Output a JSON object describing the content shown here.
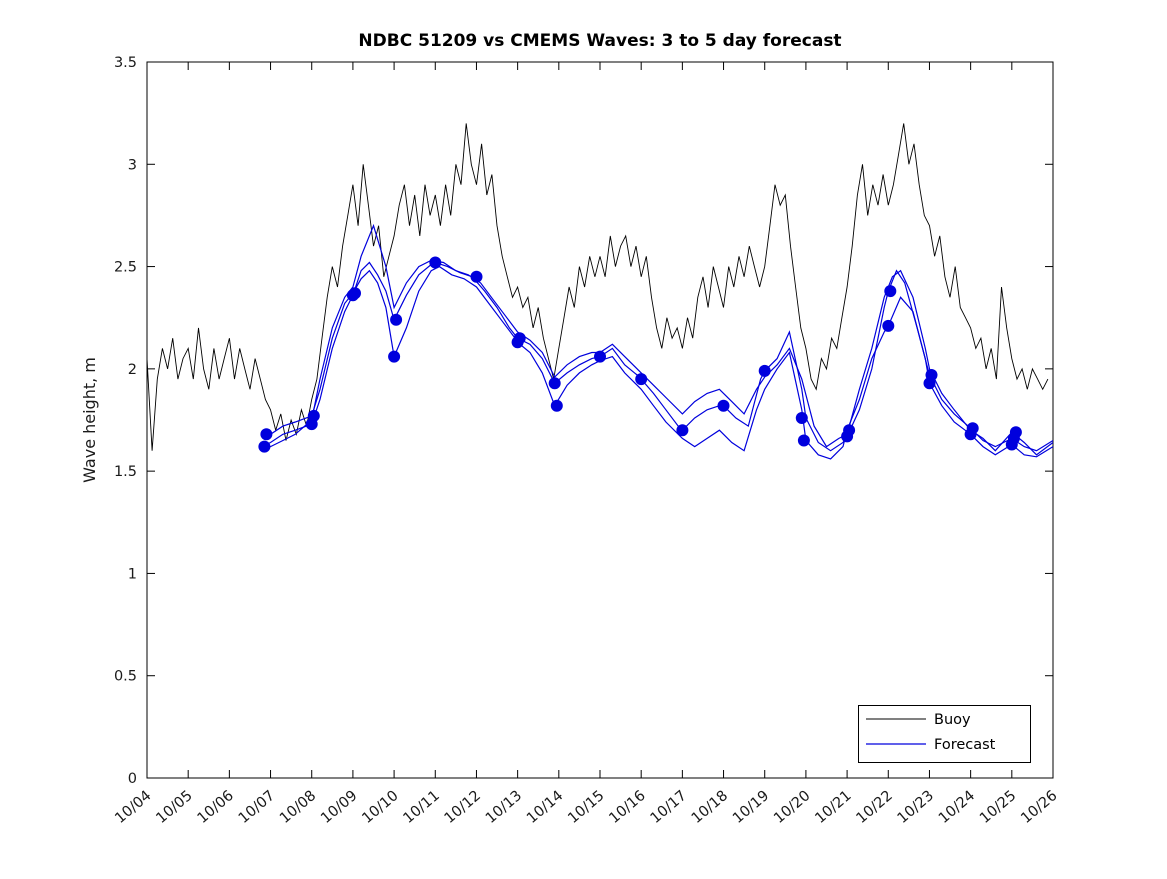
{
  "chart_data": {
    "type": "line",
    "title": "NDBC 51209 vs CMEMS Waves: 3 to 5 day forecast",
    "xlabel": "",
    "ylabel": "Wave height, m",
    "ylim": [
      0,
      3.5
    ],
    "y_ticks": [
      0,
      0.5,
      1,
      1.5,
      2,
      2.5,
      3,
      3.5
    ],
    "y_tick_labels": [
      "0",
      "0.5",
      "1",
      "1.5",
      "2",
      "2.5",
      "3",
      "3.5"
    ],
    "x_range_days": [
      0,
      22
    ],
    "x_tick_positions": [
      0,
      1,
      2,
      3,
      4,
      5,
      6,
      7,
      8,
      9,
      10,
      11,
      12,
      13,
      14,
      15,
      16,
      17,
      18,
      19,
      20,
      21,
      22
    ],
    "x_tick_labels": [
      "10/04",
      "10/05",
      "10/06",
      "10/07",
      "10/08",
      "10/09",
      "10/10",
      "10/11",
      "10/12",
      "10/13",
      "10/14",
      "10/15",
      "10/16",
      "10/17",
      "10/18",
      "10/19",
      "10/20",
      "10/21",
      "10/22",
      "10/23",
      "10/24",
      "10/25",
      "10/26"
    ],
    "grid": false,
    "legend": {
      "position": "bottom-right",
      "entries": [
        {
          "label": "Buoy",
          "color": "#000000"
        },
        {
          "label": "Forecast",
          "color": "#0000dd"
        }
      ]
    },
    "buoy": {
      "name": "Buoy",
      "color": "#000000",
      "t_start_days": 0,
      "t_step_days": 0.125,
      "values": [
        2.05,
        1.6,
        1.95,
        2.1,
        2.0,
        2.15,
        1.95,
        2.05,
        2.1,
        1.95,
        2.2,
        2.0,
        1.9,
        2.1,
        1.95,
        2.05,
        2.15,
        1.95,
        2.1,
        2.0,
        1.9,
        2.05,
        1.95,
        1.85,
        1.8,
        1.7,
        1.78,
        1.65,
        1.75,
        1.68,
        1.8,
        1.72,
        1.85,
        1.95,
        2.15,
        2.35,
        2.5,
        2.4,
        2.6,
        2.75,
        2.9,
        2.7,
        3.0,
        2.8,
        2.6,
        2.7,
        2.45,
        2.55,
        2.65,
        2.8,
        2.9,
        2.7,
        2.85,
        2.65,
        2.9,
        2.75,
        2.85,
        2.7,
        2.9,
        2.75,
        3.0,
        2.9,
        3.2,
        3.0,
        2.9,
        3.1,
        2.85,
        2.95,
        2.7,
        2.55,
        2.45,
        2.35,
        2.4,
        2.3,
        2.35,
        2.2,
        2.3,
        2.15,
        2.05,
        1.95,
        2.1,
        2.25,
        2.4,
        2.3,
        2.5,
        2.4,
        2.55,
        2.45,
        2.55,
        2.45,
        2.65,
        2.5,
        2.6,
        2.65,
        2.5,
        2.6,
        2.45,
        2.55,
        2.35,
        2.2,
        2.1,
        2.25,
        2.15,
        2.2,
        2.1,
        2.25,
        2.15,
        2.35,
        2.45,
        2.3,
        2.5,
        2.4,
        2.3,
        2.5,
        2.4,
        2.55,
        2.45,
        2.6,
        2.5,
        2.4,
        2.5,
        2.7,
        2.9,
        2.8,
        2.85,
        2.6,
        2.4,
        2.2,
        2.1,
        1.95,
        1.9,
        2.05,
        2.0,
        2.15,
        2.1,
        2.25,
        2.4,
        2.6,
        2.85,
        3.0,
        2.75,
        2.9,
        2.8,
        2.95,
        2.8,
        2.9,
        3.05,
        3.2,
        3.0,
        3.1,
        2.9,
        2.75,
        2.7,
        2.55,
        2.65,
        2.45,
        2.35,
        2.5,
        2.3,
        2.25,
        2.2,
        2.1,
        2.15,
        2.0,
        2.1,
        1.95,
        2.4,
        2.2,
        2.05,
        1.95,
        2.0,
        1.9,
        2.0,
        1.95,
        1.9,
        1.95
      ]
    },
    "forecast": {
      "name": "Forecast",
      "color": "#0000dd",
      "lines": [
        [
          [
            2.8,
            1.62
          ],
          [
            3.0,
            1.64
          ],
          [
            3.3,
            1.68
          ],
          [
            3.6,
            1.7
          ],
          [
            4.0,
            1.73
          ],
          [
            4.2,
            1.85
          ],
          [
            4.5,
            2.1
          ],
          [
            4.8,
            2.28
          ],
          [
            5.0,
            2.36
          ],
          [
            5.2,
            2.48
          ],
          [
            5.4,
            2.52
          ],
          [
            5.6,
            2.46
          ],
          [
            5.8,
            2.38
          ],
          [
            6.0,
            2.24
          ],
          [
            6.3,
            2.36
          ],
          [
            6.6,
            2.46
          ],
          [
            6.9,
            2.51
          ],
          [
            7.0,
            2.52
          ],
          [
            7.3,
            2.5
          ],
          [
            7.6,
            2.47
          ],
          [
            7.9,
            2.45
          ],
          [
            8.2,
            2.38
          ],
          [
            8.5,
            2.3
          ],
          [
            8.8,
            2.2
          ],
          [
            9.0,
            2.15
          ],
          [
            9.3,
            2.12
          ],
          [
            9.6,
            2.05
          ],
          [
            9.9,
            1.93
          ],
          [
            10.2,
            1.98
          ],
          [
            10.5,
            2.02
          ],
          [
            10.8,
            2.05
          ],
          [
            11.0,
            2.06
          ],
          [
            11.3,
            2.1
          ],
          [
            11.6,
            2.02
          ],
          [
            11.9,
            1.97
          ],
          [
            12.0,
            1.95
          ],
          [
            12.3,
            1.88
          ],
          [
            12.6,
            1.8
          ],
          [
            12.9,
            1.72
          ],
          [
            13.0,
            1.7
          ],
          [
            13.3,
            1.76
          ],
          [
            13.6,
            1.8
          ],
          [
            13.9,
            1.82
          ],
          [
            14.0,
            1.82
          ],
          [
            14.3,
            1.76
          ],
          [
            14.6,
            1.72
          ],
          [
            14.9,
            1.95
          ],
          [
            15.0,
            1.99
          ],
          [
            15.3,
            2.05
          ],
          [
            15.6,
            2.18
          ],
          [
            15.9,
            1.9
          ],
          [
            16.0,
            1.76
          ],
          [
            16.3,
            1.64
          ],
          [
            16.6,
            1.6
          ],
          [
            16.9,
            1.64
          ],
          [
            17.0,
            1.67
          ],
          [
            17.3,
            1.8
          ],
          [
            17.6,
            2.0
          ],
          [
            17.9,
            2.3
          ],
          [
            18.0,
            2.38
          ],
          [
            18.2,
            2.48
          ],
          [
            18.4,
            2.42
          ],
          [
            18.7,
            2.2
          ],
          [
            19.0,
            1.97
          ],
          [
            19.3,
            1.85
          ],
          [
            19.6,
            1.78
          ],
          [
            20.0,
            1.71
          ],
          [
            20.3,
            1.65
          ],
          [
            20.6,
            1.62
          ],
          [
            21.0,
            1.66
          ],
          [
            21.3,
            1.62
          ],
          [
            21.6,
            1.6
          ],
          [
            22.0,
            1.65
          ]
        ],
        [
          [
            2.8,
            1.66
          ],
          [
            3.0,
            1.68
          ],
          [
            3.3,
            1.72
          ],
          [
            3.6,
            1.74
          ],
          [
            4.0,
            1.77
          ],
          [
            4.2,
            1.9
          ],
          [
            4.5,
            2.15
          ],
          [
            4.8,
            2.32
          ],
          [
            5.0,
            2.37
          ],
          [
            5.2,
            2.44
          ],
          [
            5.4,
            2.48
          ],
          [
            5.6,
            2.42
          ],
          [
            5.8,
            2.3
          ],
          [
            6.0,
            2.06
          ],
          [
            6.3,
            2.2
          ],
          [
            6.6,
            2.38
          ],
          [
            6.9,
            2.48
          ],
          [
            7.1,
            2.5
          ],
          [
            7.4,
            2.46
          ],
          [
            7.7,
            2.44
          ],
          [
            8.0,
            2.4
          ],
          [
            8.3,
            2.32
          ],
          [
            8.6,
            2.24
          ],
          [
            8.9,
            2.16
          ],
          [
            9.0,
            2.13
          ],
          [
            9.3,
            2.08
          ],
          [
            9.6,
            1.98
          ],
          [
            9.9,
            1.82
          ],
          [
            10.2,
            1.92
          ],
          [
            10.5,
            1.98
          ],
          [
            10.8,
            2.02
          ],
          [
            11.0,
            2.04
          ],
          [
            11.3,
            2.06
          ],
          [
            11.6,
            1.98
          ],
          [
            12.0,
            1.9
          ],
          [
            12.3,
            1.82
          ],
          [
            12.6,
            1.74
          ],
          [
            13.0,
            1.66
          ],
          [
            13.3,
            1.62
          ],
          [
            13.6,
            1.66
          ],
          [
            13.9,
            1.7
          ],
          [
            14.2,
            1.64
          ],
          [
            14.5,
            1.6
          ],
          [
            14.8,
            1.8
          ],
          [
            15.0,
            1.9
          ],
          [
            15.3,
            2.0
          ],
          [
            15.6,
            2.08
          ],
          [
            15.9,
            1.8
          ],
          [
            16.0,
            1.65
          ],
          [
            16.3,
            1.58
          ],
          [
            16.6,
            1.56
          ],
          [
            16.9,
            1.62
          ],
          [
            17.0,
            1.7
          ],
          [
            17.3,
            1.85
          ],
          [
            17.6,
            2.05
          ],
          [
            17.9,
            2.18
          ],
          [
            18.0,
            2.21
          ],
          [
            18.3,
            2.35
          ],
          [
            18.6,
            2.28
          ],
          [
            18.9,
            2.05
          ],
          [
            19.0,
            1.93
          ],
          [
            19.3,
            1.82
          ],
          [
            19.6,
            1.74
          ],
          [
            20.0,
            1.68
          ],
          [
            20.3,
            1.62
          ],
          [
            20.6,
            1.58
          ],
          [
            21.0,
            1.63
          ],
          [
            21.3,
            1.58
          ],
          [
            21.6,
            1.57
          ],
          [
            22.0,
            1.62
          ]
        ],
        [
          [
            2.8,
            1.6
          ],
          [
            3.0,
            1.62
          ],
          [
            3.3,
            1.65
          ],
          [
            3.6,
            1.68
          ],
          [
            4.0,
            1.75
          ],
          [
            4.2,
            1.95
          ],
          [
            4.5,
            2.2
          ],
          [
            4.8,
            2.35
          ],
          [
            5.0,
            2.4
          ],
          [
            5.2,
            2.55
          ],
          [
            5.5,
            2.7
          ],
          [
            5.8,
            2.5
          ],
          [
            6.0,
            2.3
          ],
          [
            6.3,
            2.42
          ],
          [
            6.6,
            2.5
          ],
          [
            6.9,
            2.53
          ],
          [
            7.2,
            2.52
          ],
          [
            7.5,
            2.48
          ],
          [
            7.8,
            2.46
          ],
          [
            8.1,
            2.42
          ],
          [
            8.4,
            2.34
          ],
          [
            8.7,
            2.26
          ],
          [
            9.0,
            2.18
          ],
          [
            9.3,
            2.14
          ],
          [
            9.6,
            2.08
          ],
          [
            9.9,
            1.96
          ],
          [
            10.2,
            2.02
          ],
          [
            10.5,
            2.06
          ],
          [
            10.8,
            2.08
          ],
          [
            11.0,
            2.08
          ],
          [
            11.3,
            2.12
          ],
          [
            11.6,
            2.06
          ],
          [
            12.0,
            1.98
          ],
          [
            12.3,
            1.92
          ],
          [
            12.6,
            1.86
          ],
          [
            13.0,
            1.78
          ],
          [
            13.3,
            1.84
          ],
          [
            13.6,
            1.88
          ],
          [
            13.9,
            1.9
          ],
          [
            14.2,
            1.84
          ],
          [
            14.5,
            1.78
          ],
          [
            14.8,
            1.9
          ],
          [
            15.0,
            1.96
          ],
          [
            15.3,
            2.02
          ],
          [
            15.6,
            2.1
          ],
          [
            15.9,
            1.95
          ],
          [
            16.2,
            1.72
          ],
          [
            16.5,
            1.62
          ],
          [
            16.8,
            1.66
          ],
          [
            17.0,
            1.68
          ],
          [
            17.3,
            1.9
          ],
          [
            17.6,
            2.1
          ],
          [
            17.9,
            2.35
          ],
          [
            18.1,
            2.45
          ],
          [
            18.3,
            2.48
          ],
          [
            18.6,
            2.35
          ],
          [
            18.9,
            2.1
          ],
          [
            19.0,
            2.0
          ],
          [
            19.3,
            1.88
          ],
          [
            19.6,
            1.8
          ],
          [
            20.0,
            1.7
          ],
          [
            20.3,
            1.66
          ],
          [
            20.6,
            1.6
          ],
          [
            21.0,
            1.69
          ],
          [
            21.3,
            1.64
          ],
          [
            21.6,
            1.58
          ],
          [
            22.0,
            1.64
          ]
        ]
      ],
      "markers": [
        [
          2.85,
          1.62
        ],
        [
          2.9,
          1.68
        ],
        [
          4.0,
          1.73
        ],
        [
          4.05,
          1.77
        ],
        [
          5.0,
          2.36
        ],
        [
          5.05,
          2.37
        ],
        [
          6.0,
          2.06
        ],
        [
          6.05,
          2.24
        ],
        [
          7.0,
          2.52
        ],
        [
          8.0,
          2.45
        ],
        [
          9.0,
          2.13
        ],
        [
          9.05,
          2.15
        ],
        [
          9.9,
          1.93
        ],
        [
          9.95,
          1.82
        ],
        [
          11.0,
          2.06
        ],
        [
          12.0,
          1.95
        ],
        [
          13.0,
          1.7
        ],
        [
          14.0,
          1.82
        ],
        [
          15.0,
          1.99
        ],
        [
          15.9,
          1.76
        ],
        [
          15.95,
          1.65
        ],
        [
          17.0,
          1.67
        ],
        [
          17.05,
          1.7
        ],
        [
          18.0,
          2.21
        ],
        [
          18.05,
          2.38
        ],
        [
          19.0,
          1.93
        ],
        [
          19.05,
          1.97
        ],
        [
          20.0,
          1.68
        ],
        [
          20.05,
          1.71
        ],
        [
          21.0,
          1.63
        ],
        [
          21.05,
          1.66
        ],
        [
          21.1,
          1.69
        ]
      ]
    }
  }
}
